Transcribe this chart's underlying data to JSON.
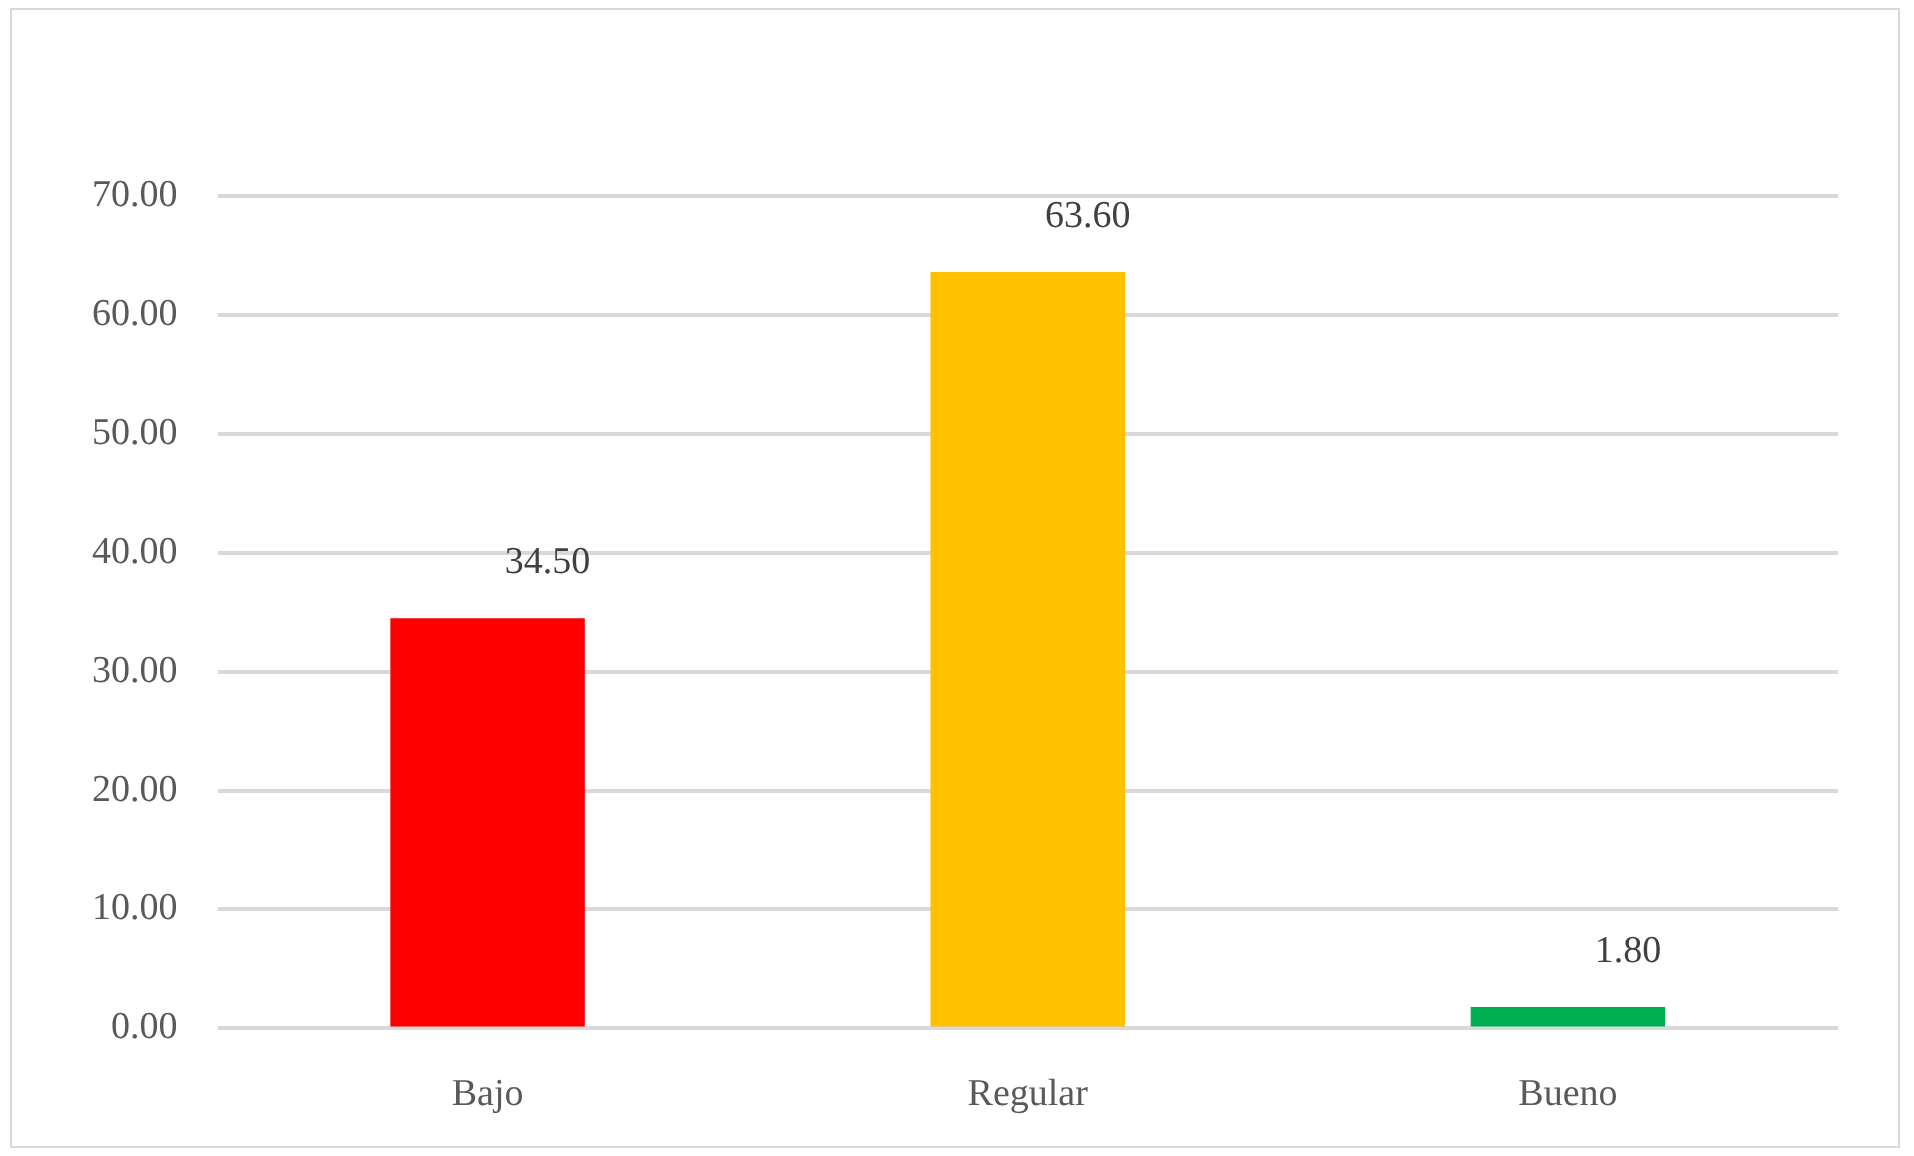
{
  "chart_data": {
    "type": "bar",
    "categories": [
      "Bajo",
      "Regular",
      "Bueno"
    ],
    "values": [
      34.5,
      63.6,
      1.8
    ],
    "value_labels": [
      "34.50",
      "63.60",
      "1.80"
    ],
    "colors": [
      "#ff0000",
      "#ffc000",
      "#00b050"
    ],
    "ylim": [
      0,
      70
    ],
    "yticks": [
      {
        "value": 0,
        "label": "0.00"
      },
      {
        "value": 10,
        "label": "10.00"
      },
      {
        "value": 20,
        "label": "20.00"
      },
      {
        "value": 30,
        "label": "30.00"
      },
      {
        "value": 40,
        "label": "40.00"
      },
      {
        "value": 50,
        "label": "50.00"
      },
      {
        "value": 60,
        "label": "60.00"
      },
      {
        "value": 70,
        "label": "70.00"
      }
    ],
    "grid": "y"
  }
}
